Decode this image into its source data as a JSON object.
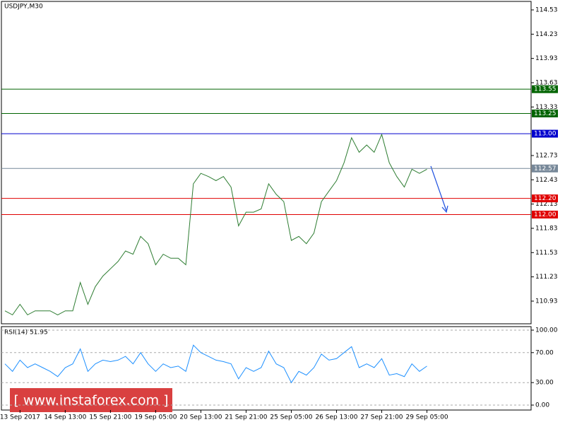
{
  "chart_data": [
    {
      "type": "line",
      "title": "USDJPY,M30",
      "color": "#2e7d32",
      "categories": [
        null,
        null,
        "13 Sep 2017",
        null,
        null,
        null,
        null,
        null,
        "14 Sep 13:00",
        null,
        null,
        null,
        null,
        null,
        "15 Sep 21:00",
        null,
        null,
        null,
        null,
        null,
        "19 Sep 05:00",
        null,
        null,
        null,
        null,
        null,
        "20 Sep 13:00",
        null,
        null,
        null,
        null,
        null,
        "21 Sep 21:00",
        null,
        null,
        null,
        null,
        null,
        "25 Sep 05:00",
        null,
        null,
        null,
        null,
        null,
        "26 Sep 13:00",
        null,
        null,
        null,
        null,
        null,
        "27 Sep 21:00",
        null,
        null,
        null,
        null,
        null,
        "29 Sep 05:00"
      ],
      "values": [
        110.81,
        110.76,
        110.89,
        110.76,
        110.81,
        110.81,
        110.81,
        110.76,
        110.81,
        110.81,
        111.16,
        110.89,
        111.11,
        111.24,
        111.33,
        111.42,
        111.55,
        111.51,
        111.73,
        111.64,
        111.38,
        111.51,
        111.46,
        111.46,
        111.38,
        112.38,
        112.51,
        112.47,
        112.42,
        112.47,
        112.34,
        111.86,
        112.03,
        112.03,
        112.07,
        112.38,
        112.25,
        112.16,
        111.68,
        111.73,
        111.64,
        111.77,
        112.16,
        112.29,
        112.42,
        112.64,
        112.95,
        112.77,
        112.86,
        112.77,
        112.99,
        112.64,
        112.47,
        112.34,
        112.56,
        112.51,
        112.56
      ],
      "ylim": [
        110.65,
        114.635
      ],
      "yticks": [
        114.53,
        114.23,
        113.93,
        113.63,
        113.33,
        112.73,
        112.43,
        112.13,
        111.83,
        111.53,
        111.23,
        110.93
      ],
      "levels": {
        "values": [
          113.55,
          113.25,
          113,
          112.57,
          112.2,
          112
        ],
        "value_labels": [
          "113.55",
          "113.25",
          "113.00",
          "112.57",
          "112.20",
          "112.00"
        ],
        "colors": [
          "#006400",
          "#006400",
          "#0000cd",
          "#778899",
          "#e00000",
          "#e00000"
        ]
      }
    },
    {
      "type": "line",
      "title": "RSI(14) 51.95",
      "color": "#1e90ff",
      "values": [
        55,
        45,
        60,
        50,
        55,
        50,
        45,
        38,
        50,
        55,
        75,
        45,
        55,
        60,
        58,
        60,
        65,
        55,
        70,
        55,
        45,
        55,
        50,
        52,
        45,
        80,
        70,
        65,
        60,
        58,
        55,
        35,
        50,
        45,
        50,
        72,
        55,
        50,
        30,
        45,
        40,
        50,
        68,
        60,
        62,
        70,
        78,
        50,
        55,
        50,
        62,
        40,
        42,
        38,
        55,
        45,
        52
      ],
      "ylim": [
        -6.6,
        104.7
      ],
      "yticks": [
        {
          "value": 100,
          "label": "100.00"
        },
        {
          "value": 70,
          "label": "70.00"
        },
        {
          "value": 30,
          "label": "30.00"
        },
        {
          "value": 0,
          "label": "0.00"
        }
      ]
    }
  ],
  "watermark": "[ www.instaforex.com ]"
}
